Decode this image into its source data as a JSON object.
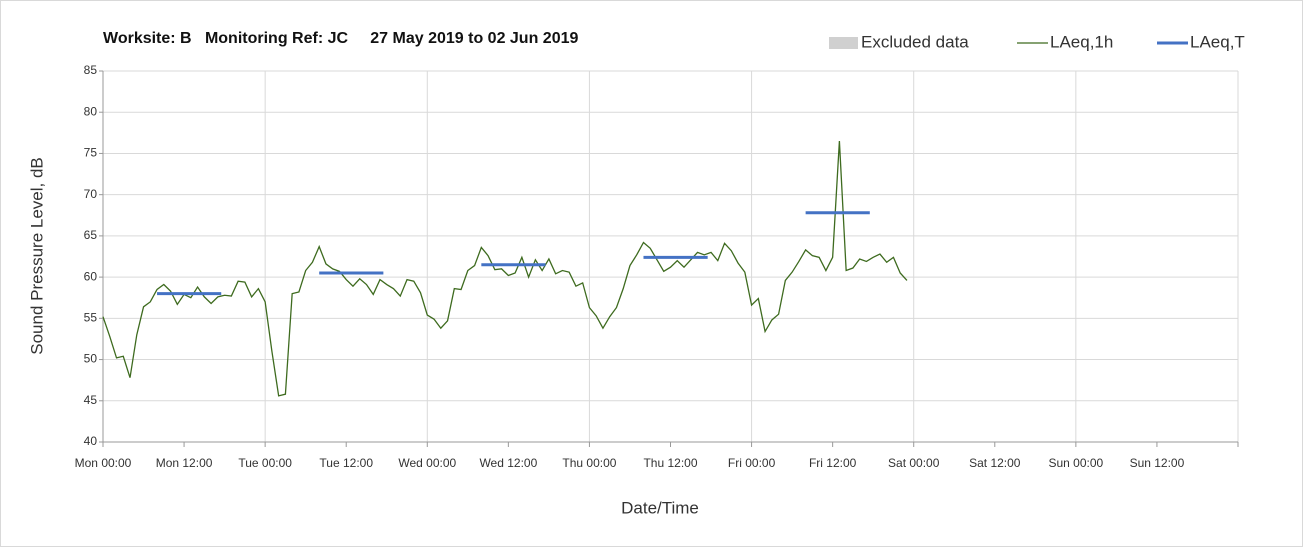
{
  "chart_data": {
    "type": "line",
    "title": "Worksite: B   Monitoring Ref: JC     27 May 2019 to 02 Jun 2019",
    "x_label": "Date/Time",
    "y_label": "Sound Pressure Level, dB",
    "xlim": [
      0,
      168
    ],
    "xticks": [
      {
        "value": 0,
        "label": "Mon 00:00"
      },
      {
        "value": 12,
        "label": "Mon 12:00"
      },
      {
        "value": 24,
        "label": "Tue 00:00"
      },
      {
        "value": 36,
        "label": "Tue 12:00"
      },
      {
        "value": 48,
        "label": "Wed 00:00"
      },
      {
        "value": 60,
        "label": "Wed 12:00"
      },
      {
        "value": 72,
        "label": "Thu 00:00"
      },
      {
        "value": 84,
        "label": "Thu 12:00"
      },
      {
        "value": 96,
        "label": "Fri 00:00"
      },
      {
        "value": 108,
        "label": "Fri 12:00"
      },
      {
        "value": 120,
        "label": "Sat 00:00"
      },
      {
        "value": 132,
        "label": "Sat 12:00"
      },
      {
        "value": 144,
        "label": "Sun 00:00"
      },
      {
        "value": 156,
        "label": "Sun 12:00"
      }
    ],
    "ylim": [
      40,
      85
    ],
    "yticks": [
      40,
      45,
      50,
      55,
      60,
      65,
      70,
      75,
      80,
      85
    ],
    "grid": true,
    "legend": "top-right",
    "series": [
      {
        "name": "Excluded data",
        "color": "#d0d0d0",
        "values": []
      },
      {
        "name": "LAeq,1h",
        "color": "#3e6b1f",
        "x": [
          0,
          1,
          2,
          3,
          4,
          5,
          6,
          7,
          8,
          9,
          10,
          11,
          12,
          13,
          14,
          15,
          16,
          17,
          18,
          19,
          20,
          21,
          22,
          23,
          24,
          25,
          26,
          27,
          28,
          29,
          30,
          31,
          32,
          33,
          34,
          35,
          36,
          37,
          38,
          39,
          40,
          41,
          42,
          43,
          44,
          45,
          46,
          47,
          48,
          49,
          50,
          51,
          52,
          53,
          54,
          55,
          56,
          57,
          58,
          59,
          60,
          61,
          62,
          63,
          64,
          65,
          66,
          67,
          68,
          69,
          70,
          71,
          72,
          73,
          74,
          75,
          76,
          77,
          78,
          79,
          80,
          81,
          82,
          83,
          84,
          85,
          86,
          87,
          88,
          89,
          90,
          91,
          92,
          93,
          94,
          95,
          96,
          97,
          98,
          99,
          100,
          101,
          102,
          103,
          104,
          105,
          106,
          107,
          108,
          109,
          110,
          111,
          112,
          113,
          114,
          115,
          116,
          117,
          118,
          119
        ],
        "values": [
          55.2,
          52.8,
          50.2,
          50.4,
          47.8,
          53,
          56.4,
          57,
          58.5,
          59.1,
          58.3,
          56.7,
          57.9,
          57.5,
          58.8,
          57.6,
          56.8,
          57.6,
          57.8,
          57.7,
          59.5,
          59.4,
          57.6,
          58.6,
          57,
          51,
          45.6,
          45.8,
          58,
          58.2,
          60.8,
          61.8,
          63.7,
          61.6,
          61,
          60.7,
          59.7,
          58.9,
          59.8,
          59.1,
          57.9,
          59.7,
          59.1,
          58.6,
          57.7,
          59.7,
          59.5,
          58.1,
          55.4,
          54.9,
          53.8,
          54.7,
          58.6,
          58.5,
          60.8,
          61.4,
          63.6,
          62.6,
          60.9,
          61,
          60.2,
          60.5,
          62.4,
          60,
          62.1,
          60.8,
          62.2,
          60.4,
          60.8,
          60.6,
          58.9,
          59.3,
          56.3,
          55.3,
          53.8,
          55.2,
          56.3,
          58.6,
          61.4,
          62.7,
          64.2,
          63.5,
          62.1,
          60.7,
          61.2,
          62,
          61.2,
          62.1,
          63,
          62.7,
          63,
          62,
          64.1,
          63.2,
          61.7,
          60.6,
          56.6,
          57.4,
          53.4,
          54.8,
          55.5,
          59.6,
          60.6,
          61.9,
          63.3,
          62.6,
          62.4,
          60.8,
          62.4,
          76.5,
          60.8,
          61.1,
          62.2,
          61.9,
          62.4,
          62.8,
          61.8,
          62.4,
          60.5,
          59.6
        ]
      },
      {
        "name": "LAeq,T",
        "color": "#4472c4",
        "x": [
          [
            8,
            17.5
          ],
          [
            32,
            41.5
          ],
          [
            56,
            65.5
          ],
          [
            80,
            89.5
          ],
          [
            104,
            113.5
          ]
        ],
        "values": [
          58,
          60.5,
          61.5,
          62.4,
          67.8
        ]
      }
    ]
  }
}
